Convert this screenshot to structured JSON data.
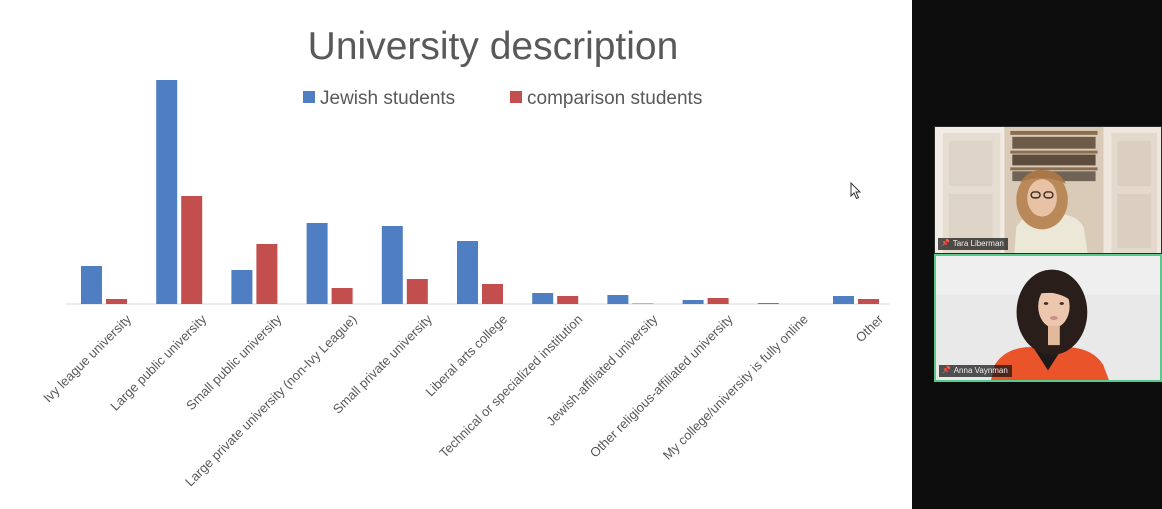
{
  "colors": {
    "series_1": "#4f7fc2",
    "series_2": "#c24e4e",
    "axis": "#d9d9d9",
    "tile_active_border": "#58c98b"
  },
  "chart_data": {
    "type": "bar",
    "title": "University description",
    "legend_position": "top",
    "grid": false,
    "categories": [
      "Ivy league university",
      "Large public university",
      "Small public university",
      "Large private university (non-Ivy League)",
      "Small private university",
      "Liberal arts college",
      "Technical or specialized institution",
      "Jewish-affiliated university",
      "Other religious-affiliated university",
      "My college/university is fully online",
      "Other"
    ],
    "series": [
      {
        "name": "Jewish students",
        "values": [
          38,
          224,
          34,
          81,
          78,
          63,
          11,
          9,
          4,
          1,
          8
        ]
      },
      {
        "name": "comparison students",
        "values": [
          5,
          108,
          60,
          16,
          25,
          20,
          8,
          0.5,
          6,
          0,
          5
        ]
      }
    ],
    "ylim": [
      0,
      224
    ]
  },
  "participants": [
    {
      "name": "Tara Liberman",
      "pin_icon": "pin-icon"
    },
    {
      "name": "Anna Vaynman",
      "pin_icon": "pin-icon"
    }
  ]
}
